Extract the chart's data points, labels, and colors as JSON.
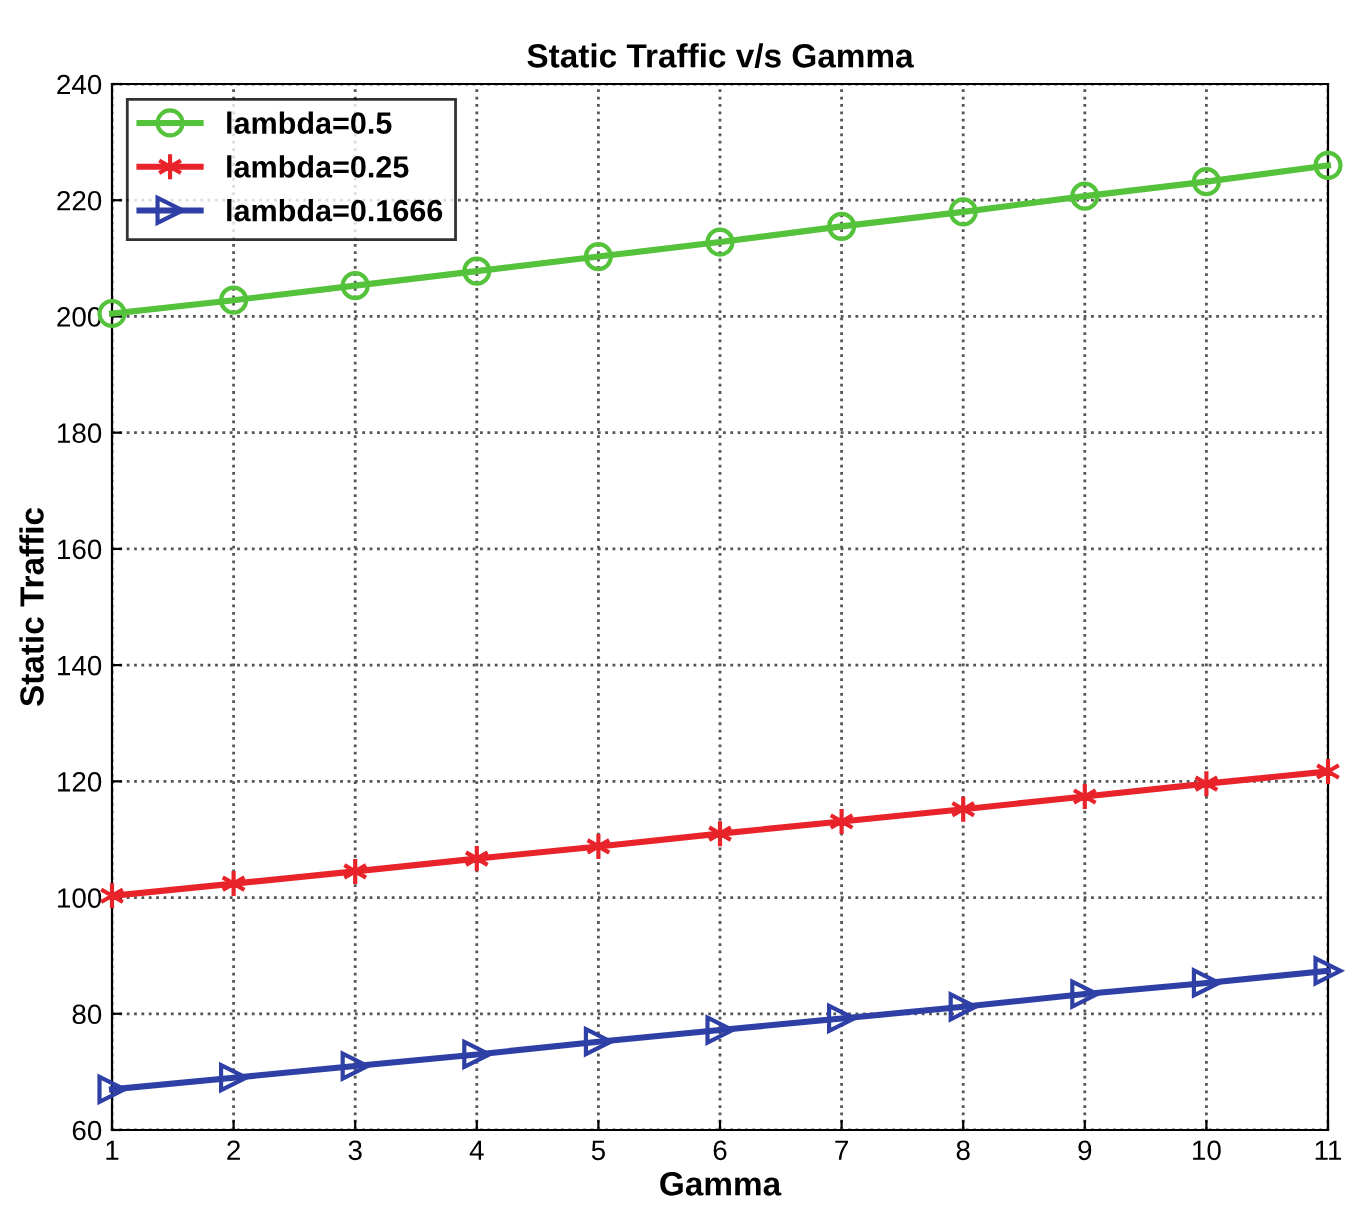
{
  "chart_data": {
    "type": "line",
    "title": "Static Traffic v/s Gamma",
    "xlabel": "Gamma",
    "ylabel": "Static Traffic",
    "x": [
      1,
      2,
      3,
      4,
      5,
      6,
      7,
      8,
      9,
      10,
      11
    ],
    "series": [
      {
        "name": "lambda=0.5",
        "color": "#55c23c",
        "marker": "circle",
        "values": [
          200.5,
          202.8,
          205.3,
          207.8,
          210.3,
          212.8,
          215.5,
          218,
          220.7,
          223.2,
          226
        ]
      },
      {
        "name": "lambda=0.25",
        "color": "#e8232a",
        "marker": "cross",
        "values": [
          100.3,
          102.4,
          104.5,
          106.7,
          108.8,
          111,
          113.1,
          115.2,
          117.4,
          119.6,
          121.7
        ]
      },
      {
        "name": "lambda=0.1666",
        "color": "#2e3fa6",
        "marker": "triangle",
        "values": [
          67,
          69,
          71,
          73,
          75.2,
          77.2,
          79.2,
          81.2,
          83.4,
          85.3,
          87.4
        ]
      }
    ],
    "xlim": [
      1,
      11
    ],
    "xticks": [
      1,
      2,
      3,
      4,
      5,
      6,
      7,
      8,
      9,
      10,
      11
    ],
    "ylim": [
      60,
      240
    ],
    "yticks": [
      60,
      80,
      100,
      120,
      140,
      160,
      180,
      200,
      220,
      240
    ],
    "grid": true,
    "legend": "top left",
    "line_style": "solid"
  }
}
